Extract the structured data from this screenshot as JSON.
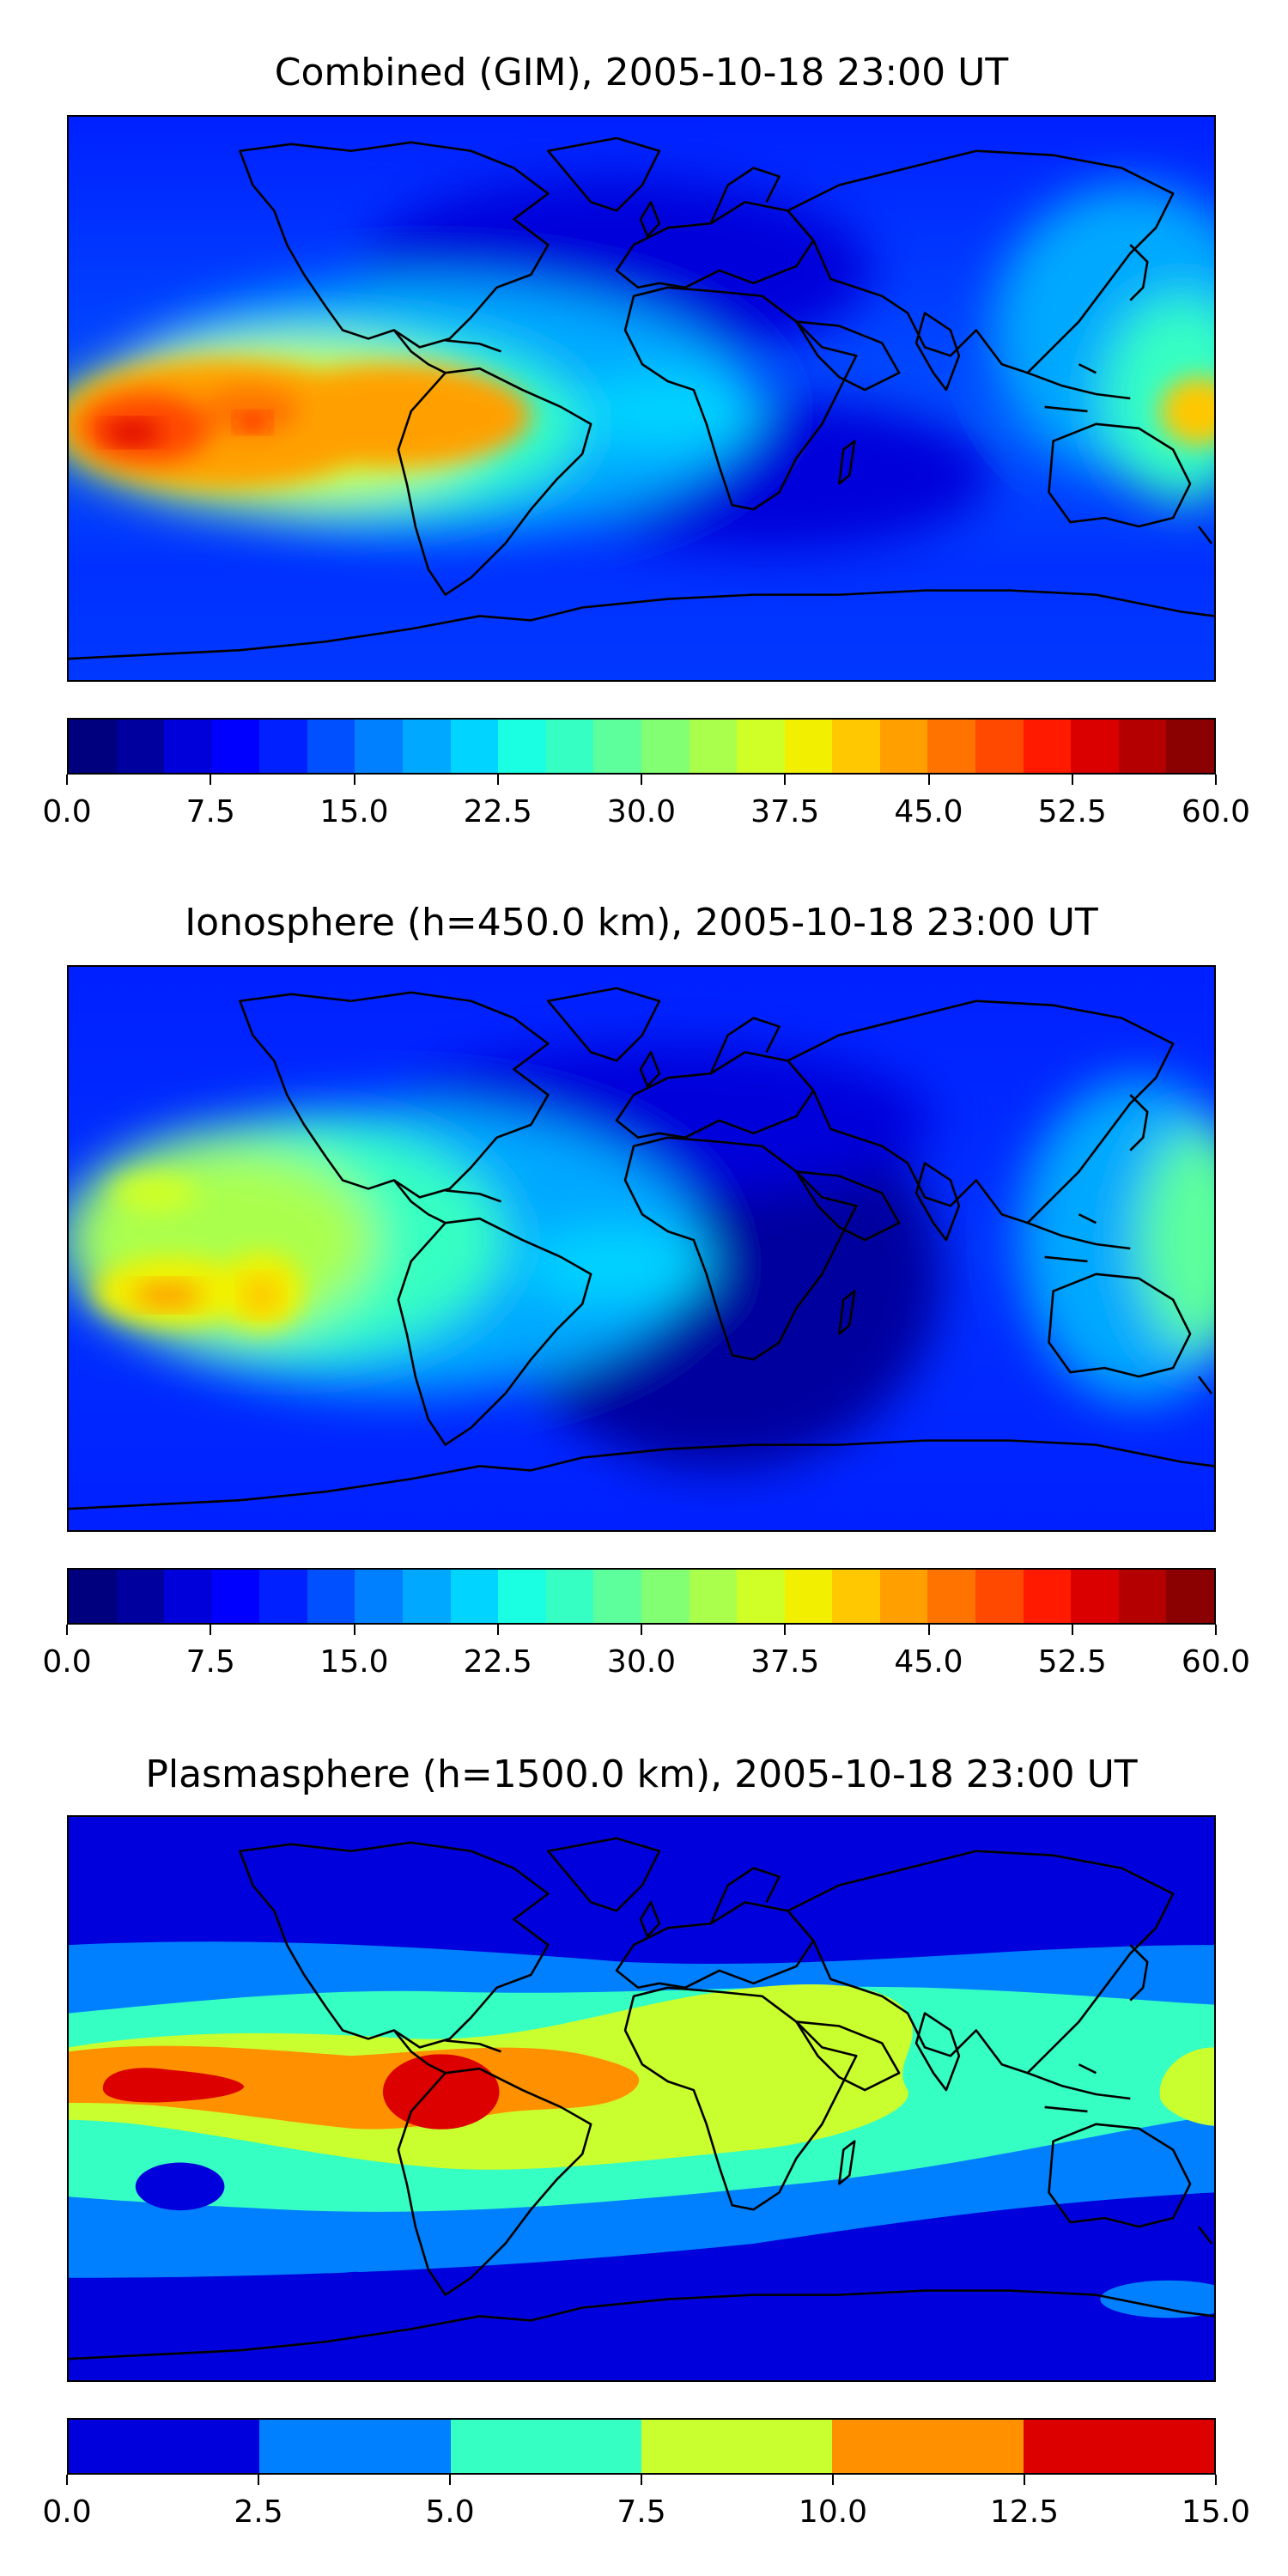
{
  "chart_data": [
    {
      "type": "heatmap",
      "title": "Combined (GIM), 2005-10-18 23:00 UT",
      "colorbar": {
        "range": [
          0.0,
          60.0
        ],
        "levels": 24,
        "tick_labels": [
          "0.0",
          "7.5",
          "15.0",
          "22.5",
          "30.0",
          "37.5",
          "45.0",
          "52.5",
          "60.0"
        ]
      },
      "peak_value": 57,
      "features": [
        {
          "name": "equatorial anomaly crest, eastern Pacific",
          "lon": -170,
          "lat": 6,
          "value": 57
        },
        {
          "name": "equatorial anomaly crest, east Pacific",
          "lon": -120,
          "lat": 8,
          "value": 53
        },
        {
          "name": "South America evening band",
          "lon": -60,
          "lat": 2,
          "value": 40
        },
        {
          "name": "western Pacific dawn",
          "lon": 175,
          "lat": 5,
          "value": 45
        },
        {
          "name": "Africa night region",
          "lon": 20,
          "lat": -5,
          "value": 7
        }
      ]
    },
    {
      "type": "heatmap",
      "title": "Ionosphere  (h=450.0 km), 2005-10-18 23:00 UT",
      "colorbar": {
        "range": [
          0.0,
          60.0
        ],
        "levels": 24,
        "tick_labels": [
          "0.0",
          "7.5",
          "15.0",
          "22.5",
          "30.0",
          "37.5",
          "45.0",
          "52.5",
          "60.0"
        ]
      },
      "peak_value": 44,
      "features": [
        {
          "name": "equatorial crest, eastern Pacific",
          "lon": -165,
          "lat": 3,
          "value": 44
        },
        {
          "name": "crest east Pacific",
          "lon": -120,
          "lat": 3,
          "value": 40
        },
        {
          "name": "northern crest",
          "lon": -165,
          "lat": 30,
          "value": 40
        },
        {
          "name": "western Pacific dawn",
          "lon": 178,
          "lat": 5,
          "value": 36
        },
        {
          "name": "Africa night region",
          "lon": 15,
          "lat": -5,
          "value": 3
        }
      ]
    },
    {
      "type": "heatmap",
      "title": "Plasmasphere (h=1500.0 km), 2005-10-18 23:00 UT",
      "colorbar": {
        "range": [
          0.0,
          15.0
        ],
        "levels": 6,
        "tick_labels": [
          "0.0",
          "2.5",
          "5.0",
          "7.5",
          "10.0",
          "12.5",
          "15.0"
        ]
      },
      "peak_value": 13.5,
      "features": [
        {
          "name": "central Pacific maximum",
          "lon": -160,
          "lat": 10,
          "value": 13.5
        },
        {
          "name": "South America maximum",
          "lon": -75,
          "lat": 0,
          "value": 13.5
        },
        {
          "name": "Africa / Indian Ocean band",
          "lon": 30,
          "lat": -5,
          "value": 9
        },
        {
          "name": "southern Pacific minimum",
          "lon": -150,
          "lat": -40,
          "value": 1.5
        }
      ]
    }
  ],
  "palette": {
    "jet24": [
      "#00007f",
      "#00009f",
      "#0000da",
      "#0000ff",
      "#0020ff",
      "#0050ff",
      "#0080ff",
      "#00a8ff",
      "#00d4ff",
      "#1affe2",
      "#35ffc2",
      "#5cff9c",
      "#83ff74",
      "#aaff4d",
      "#d0ff27",
      "#f2f000",
      "#ffc800",
      "#ffa000",
      "#ff7400",
      "#ff4800",
      "#ff1a00",
      "#da0000",
      "#b40000",
      "#8b0000"
    ],
    "jet6": [
      "#0000dc",
      "#0080ff",
      "#35ffc2",
      "#caff2f",
      "#ff9000",
      "#dc0000"
    ]
  }
}
